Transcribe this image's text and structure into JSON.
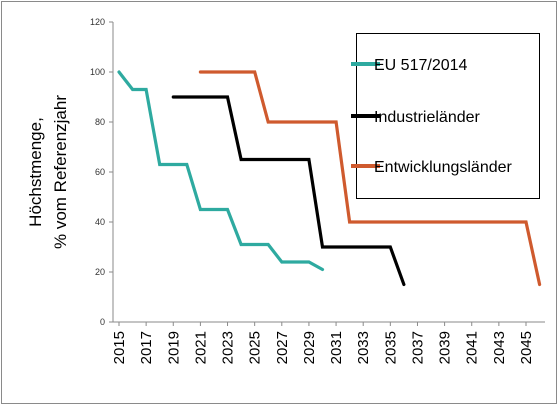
{
  "chart_data": {
    "type": "line",
    "title": "",
    "ylabel_lines": [
      "Höchstmenge,",
      "% vom Referenzjahr"
    ],
    "xlabel": "",
    "xlim": [
      2015,
      2046.5
    ],
    "ylim": [
      0,
      120
    ],
    "yticks": [
      0,
      20,
      40,
      60,
      80,
      100,
      120
    ],
    "xticks": [
      2015,
      2017,
      2019,
      2021,
      2023,
      2025,
      2027,
      2029,
      2031,
      2033,
      2035,
      2037,
      2039,
      2041,
      2043,
      2045
    ],
    "grid": false,
    "legend_position": "top-right",
    "series": [
      {
        "name": "EU 517/2014",
        "color": "#2eaaa0",
        "points": [
          [
            2015,
            100
          ],
          [
            2016,
            93
          ],
          [
            2017,
            93
          ],
          [
            2018,
            63
          ],
          [
            2020,
            63
          ],
          [
            2021,
            45
          ],
          [
            2023,
            45
          ],
          [
            2024,
            31
          ],
          [
            2026,
            31
          ],
          [
            2027,
            24
          ],
          [
            2029,
            24
          ],
          [
            2030,
            21
          ]
        ]
      },
      {
        "name": "Industrieländer",
        "color": "#000000",
        "points": [
          [
            2019,
            90
          ],
          [
            2023,
            90
          ],
          [
            2024,
            65
          ],
          [
            2029,
            65
          ],
          [
            2030,
            30
          ],
          [
            2035,
            30
          ],
          [
            2036,
            15
          ]
        ]
      },
      {
        "name": "Entwicklungsländer",
        "color": "#cf5a2e",
        "points": [
          [
            2021,
            100
          ],
          [
            2025,
            100
          ],
          [
            2026,
            80
          ],
          [
            2031,
            80
          ],
          [
            2032,
            40
          ],
          [
            2045,
            40
          ],
          [
            2046,
            15
          ]
        ]
      }
    ]
  }
}
